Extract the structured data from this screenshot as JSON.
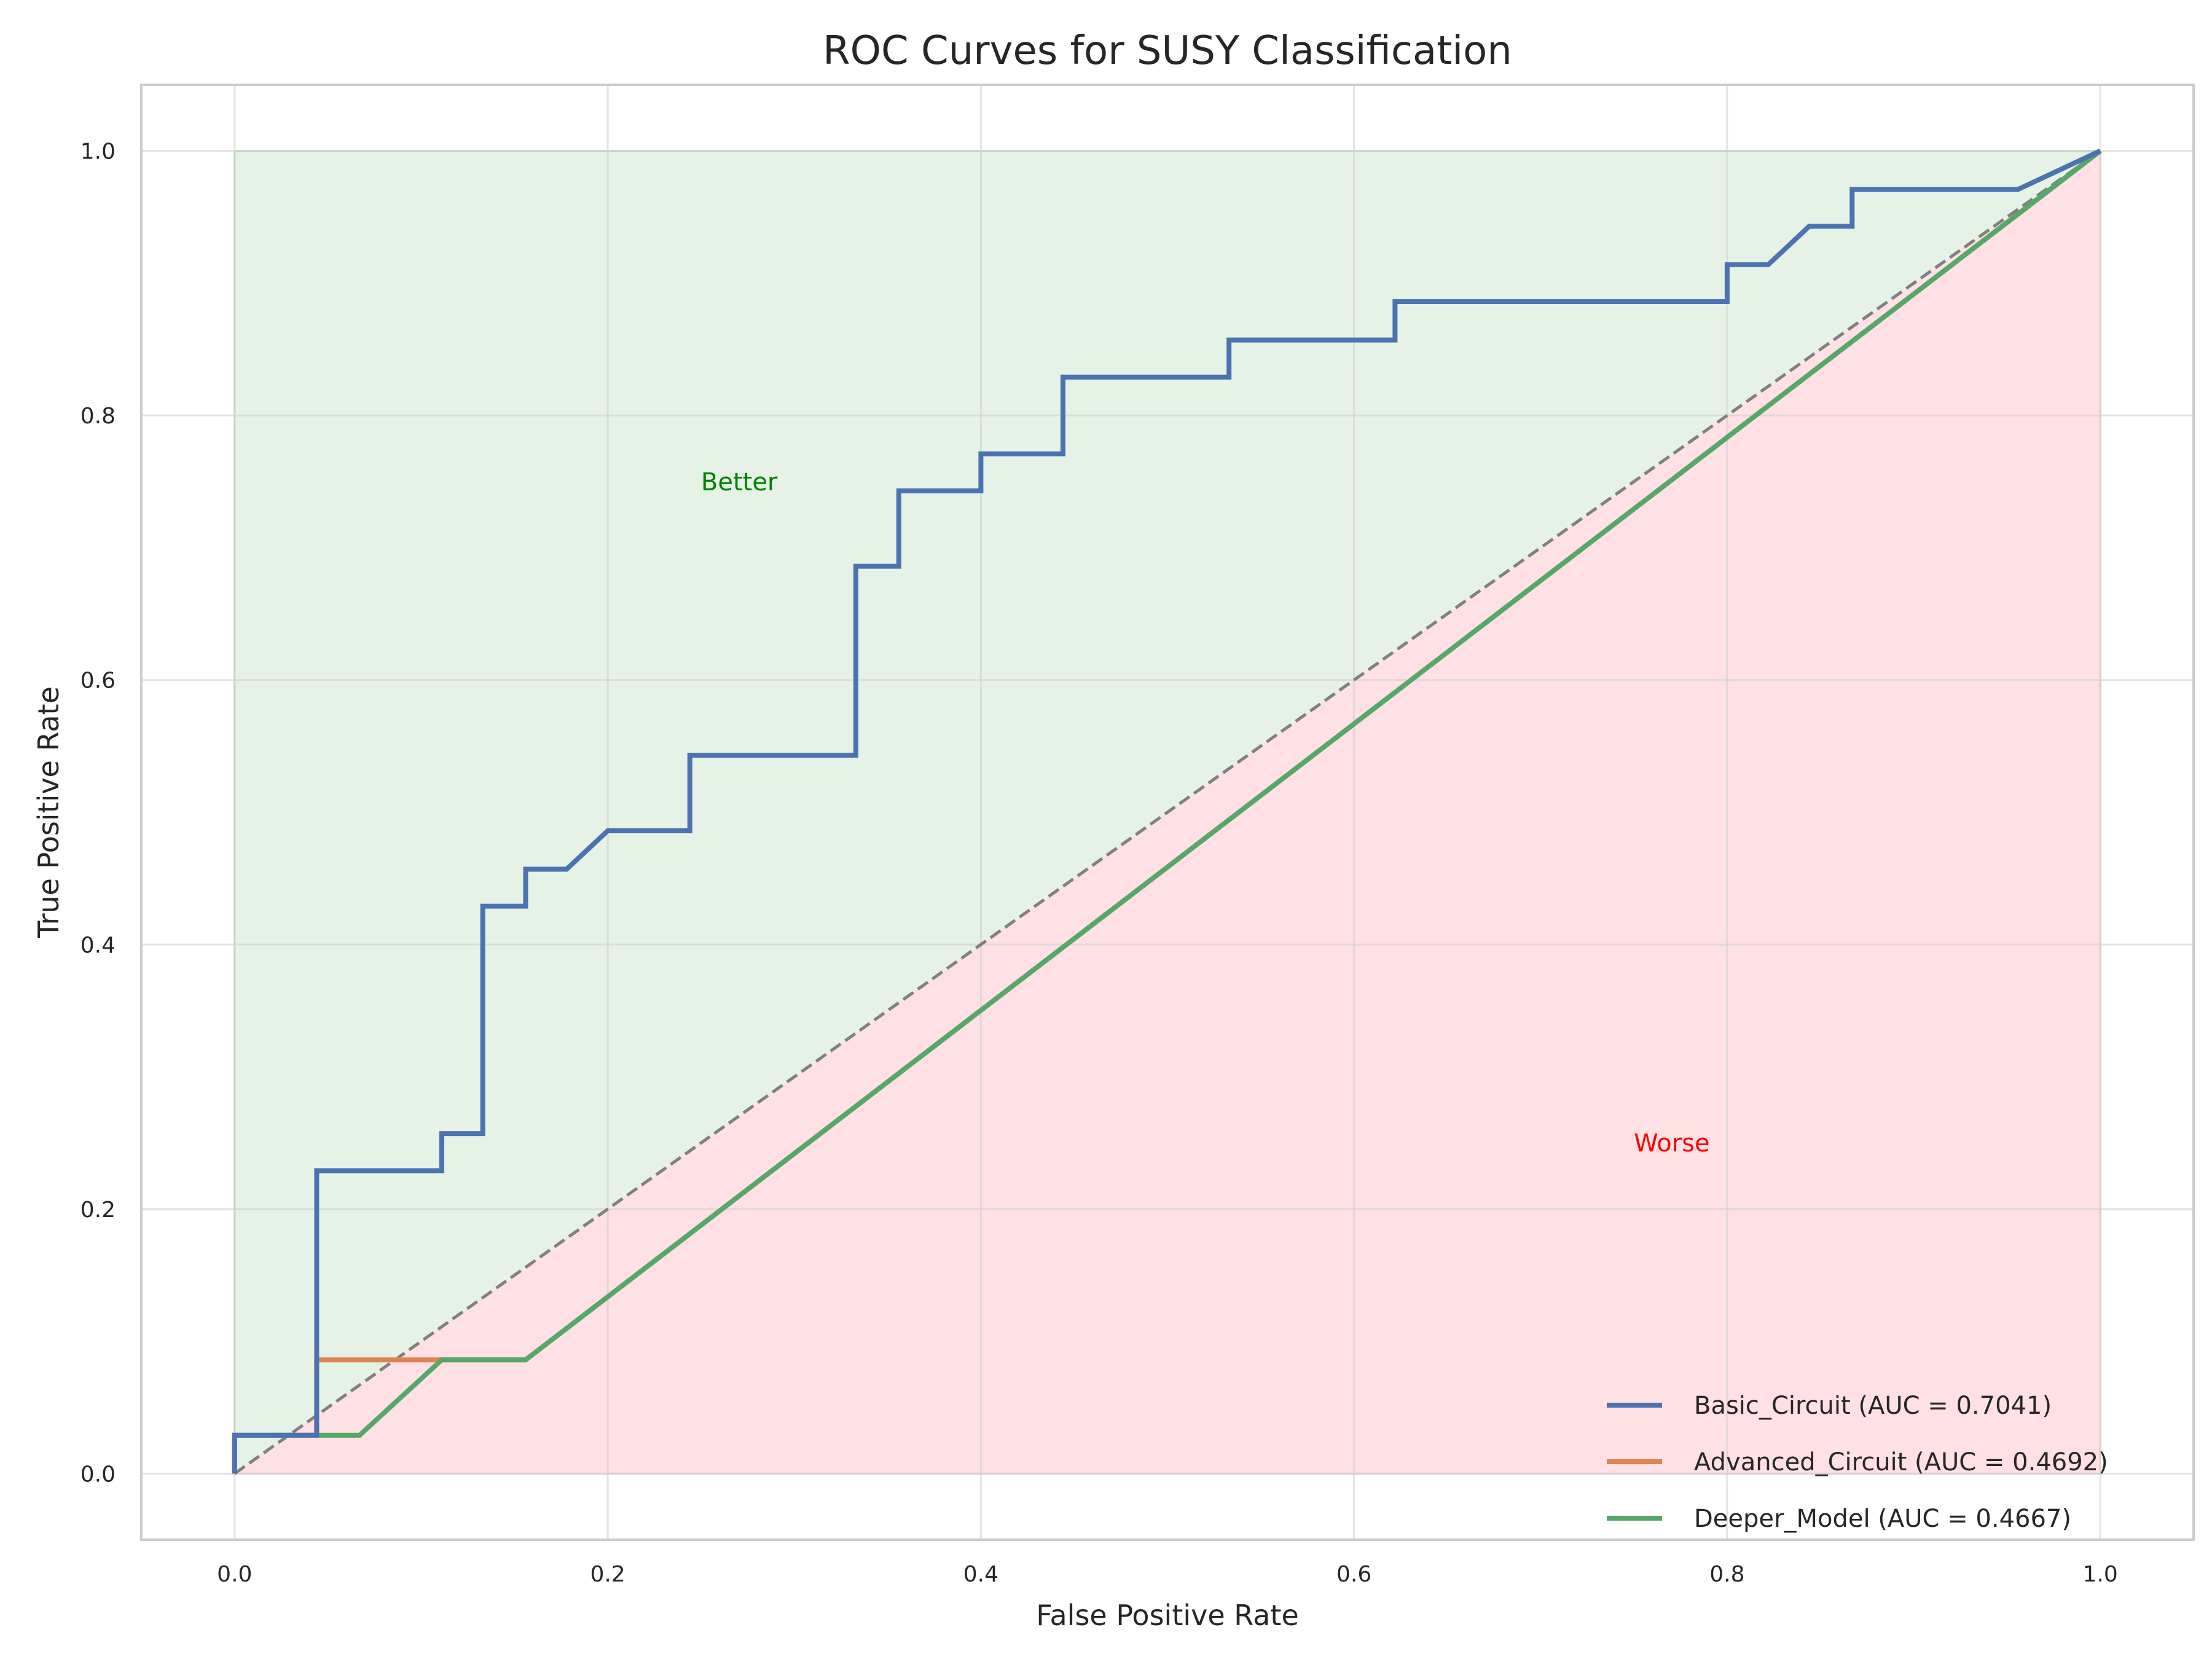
{
  "chart_data": {
    "type": "line",
    "title": "ROC Curves for SUSY Classification",
    "xlabel": "False Positive Rate",
    "ylabel": "True Positive Rate",
    "xlim": [
      -0.05,
      1.05
    ],
    "ylim": [
      -0.05,
      1.05
    ],
    "xticks": [
      0.0,
      0.2,
      0.4,
      0.6,
      0.8,
      1.0
    ],
    "yticks": [
      0.0,
      0.2,
      0.4,
      0.6,
      0.8,
      1.0
    ],
    "xtick_labels": [
      "0.0",
      "0.2",
      "0.4",
      "0.6",
      "0.8",
      "1.0"
    ],
    "ytick_labels": [
      "0.0",
      "0.2",
      "0.4",
      "0.6",
      "0.8",
      "1.0"
    ],
    "grid": true,
    "legend_position": "lower-right",
    "series": [
      {
        "name": "Basic_Circuit (AUC = 0.7041)",
        "color": "#4c72b0",
        "x": [
          0.0,
          0.0,
          0.044,
          0.044,
          0.044,
          0.111,
          0.111,
          0.133,
          0.133,
          0.156,
          0.156,
          0.178,
          0.2,
          0.244,
          0.244,
          0.333,
          0.333,
          0.356,
          0.356,
          0.4,
          0.4,
          0.444,
          0.444,
          0.533,
          0.533,
          0.622,
          0.622,
          0.8,
          0.8,
          0.822,
          0.844,
          0.867,
          0.867,
          0.956,
          1.0
        ],
        "y": [
          0.0,
          0.029,
          0.029,
          0.086,
          0.229,
          0.229,
          0.257,
          0.257,
          0.429,
          0.429,
          0.457,
          0.457,
          0.486,
          0.486,
          0.543,
          0.543,
          0.686,
          0.686,
          0.743,
          0.743,
          0.771,
          0.771,
          0.829,
          0.829,
          0.857,
          0.857,
          0.886,
          0.886,
          0.914,
          0.914,
          0.943,
          0.943,
          0.971,
          0.971,
          1.0
        ]
      },
      {
        "name": "Advanced_Circuit (AUC = 0.4692)",
        "color": "#dd8452",
        "x": [
          0.0,
          0.0,
          0.044,
          0.044,
          0.111,
          0.156,
          1.0
        ],
        "y": [
          0.0,
          0.029,
          0.029,
          0.086,
          0.086,
          0.086,
          1.0
        ]
      },
      {
        "name": "Deeper_Model (AUC = 0.4667)",
        "color": "#55a868",
        "x": [
          0.0,
          0.0,
          0.067,
          0.111,
          0.156,
          1.0
        ],
        "y": [
          0.0,
          0.029,
          0.029,
          0.086,
          0.086,
          1.0
        ]
      }
    ],
    "reference_line": {
      "x": [
        0.0,
        1.0
      ],
      "y": [
        0.0,
        1.0
      ],
      "color": "#808080",
      "style": "dashed"
    },
    "regions": [
      {
        "label": "Better",
        "color": "#008000",
        "fill": "#e5f2e5",
        "label_x": 0.25,
        "label_y": 0.75
      },
      {
        "label": "Worse",
        "color": "#ff0000",
        "fill": "#ffe0e4",
        "label_x": 0.75,
        "label_y": 0.25
      }
    ]
  }
}
